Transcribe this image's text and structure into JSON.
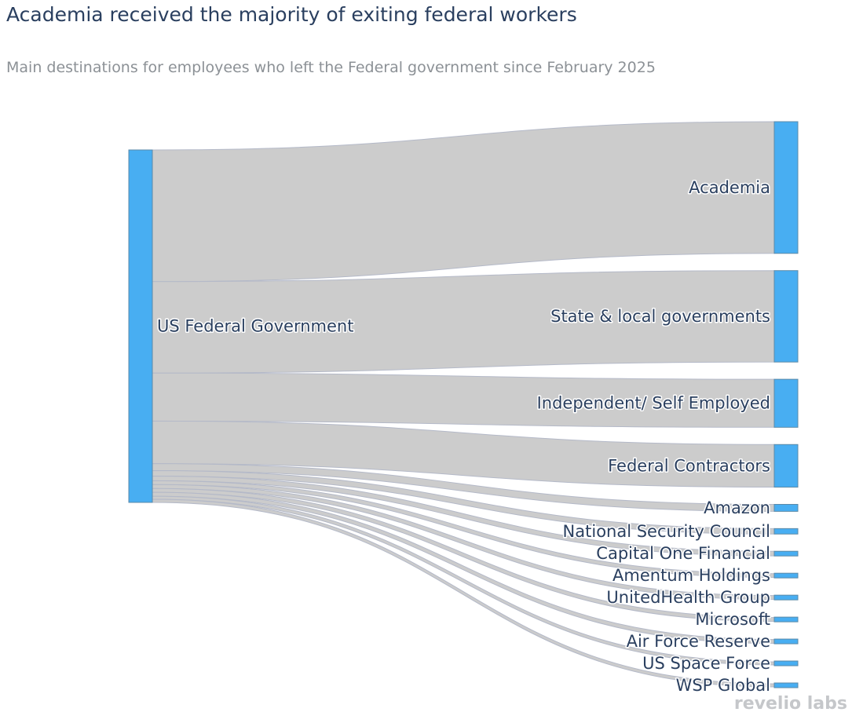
{
  "title": "Academia received the majority of exiting federal workers",
  "subtitle": "Main destinations for employees who left the Federal government since February 2025",
  "logo": "revelio labs",
  "colors": {
    "node": "#48aef2",
    "node_border": "#5b8aa8",
    "link": "#cccccc",
    "link_border": "#b4b9c8"
  },
  "chart_data": {
    "type": "sankey",
    "title": "Academia received the majority of exiting federal workers",
    "subtitle": "Main destinations for employees who left the Federal government since February 2025",
    "source": {
      "name": "US Federal Government"
    },
    "targets": [
      {
        "name": "Academia",
        "value": 170
      },
      {
        "name": "State & local governments",
        "value": 118
      },
      {
        "name": "Independent/ Self Employed",
        "value": 62
      },
      {
        "name": "Federal Contractors",
        "value": 55
      },
      {
        "name": "Amazon",
        "value": 9
      },
      {
        "name": "National Security Council",
        "value": 7
      },
      {
        "name": "Capital One Financial",
        "value": 6
      },
      {
        "name": "Amentum Holdings",
        "value": 5
      },
      {
        "name": "UnitedHealth Group",
        "value": 5
      },
      {
        "name": "Microsoft",
        "value": 5
      },
      {
        "name": "Air Force Reserve",
        "value": 5
      },
      {
        "name": "US Space Force",
        "value": 4
      },
      {
        "name": "WSP Global",
        "value": 4
      }
    ]
  }
}
